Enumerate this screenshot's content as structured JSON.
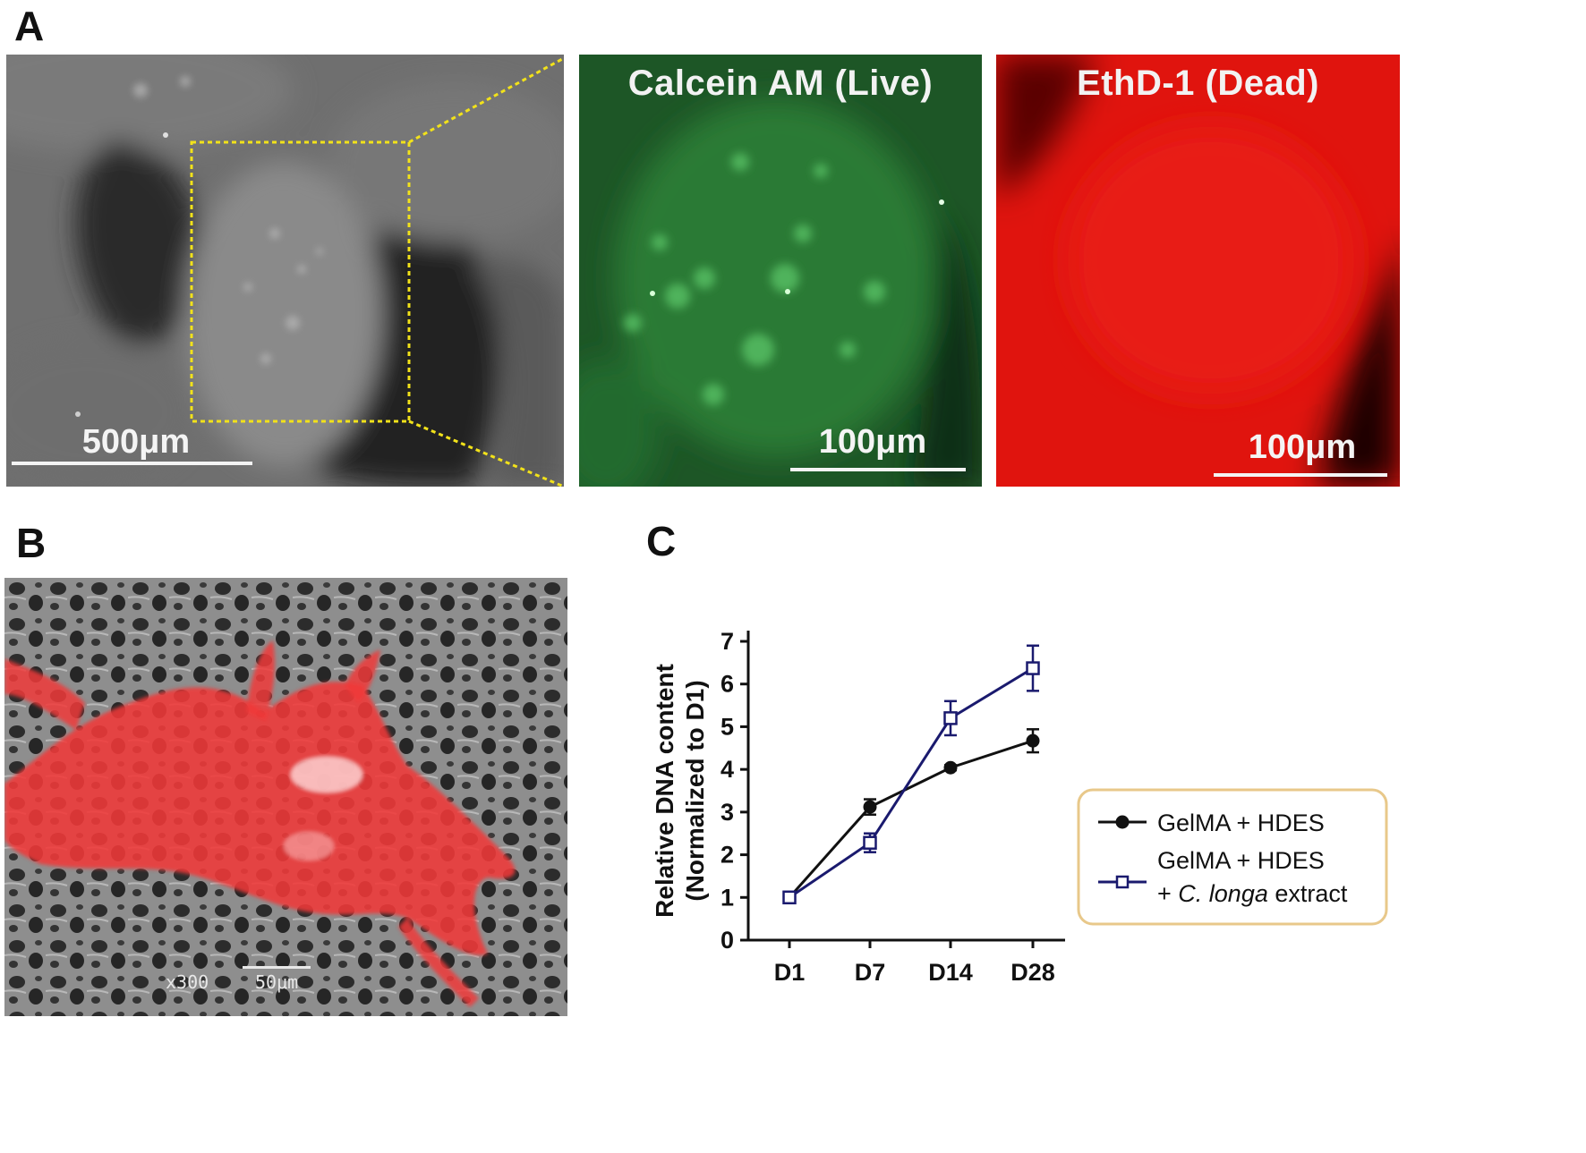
{
  "figure": {
    "panelA": {
      "letter": "A",
      "overview_scale": "500μm",
      "live_title": "Calcein AM (Live)",
      "live_scale": "100μm",
      "dead_title": "EthD-1 (Dead)",
      "dead_scale": "100μm",
      "colors": {
        "live": "#1f6a2a",
        "dead": "#e0120c",
        "zoom_box": "#f2e21a"
      }
    },
    "panelB": {
      "letter": "B",
      "magnification": "x300",
      "scale": "50μm",
      "colors": {
        "cell_overlay": "#f03a3a"
      }
    },
    "panelC": {
      "letter": "C"
    }
  },
  "chart_data": {
    "type": "line",
    "categories": [
      "D1",
      "D7",
      "D14",
      "D28"
    ],
    "ylabel_line1": "Relative DNA content",
    "ylabel_line2": "(Normalized to D1)",
    "ylim": [
      0,
      7
    ],
    "yticks": [
      0,
      1,
      2,
      3,
      4,
      5,
      6,
      7
    ],
    "series": [
      {
        "name": "GelMA + HDES",
        "marker": "circle-filled",
        "color": "#111111",
        "values": [
          1.0,
          3.12,
          4.04,
          4.67
        ],
        "errors": [
          0.05,
          0.18,
          0.06,
          0.27
        ]
      },
      {
        "name_parts": [
          "GelMA + HDES",
          "+ ",
          "C. longa",
          " extract"
        ],
        "marker": "square-open",
        "color": "#1a1a6e",
        "values": [
          1.0,
          2.28,
          5.2,
          6.37
        ],
        "errors": [
          0.05,
          0.22,
          0.4,
          0.53
        ]
      }
    ],
    "legend_placement": "right",
    "legend_border_color": "#e8c88a",
    "grid": false
  }
}
